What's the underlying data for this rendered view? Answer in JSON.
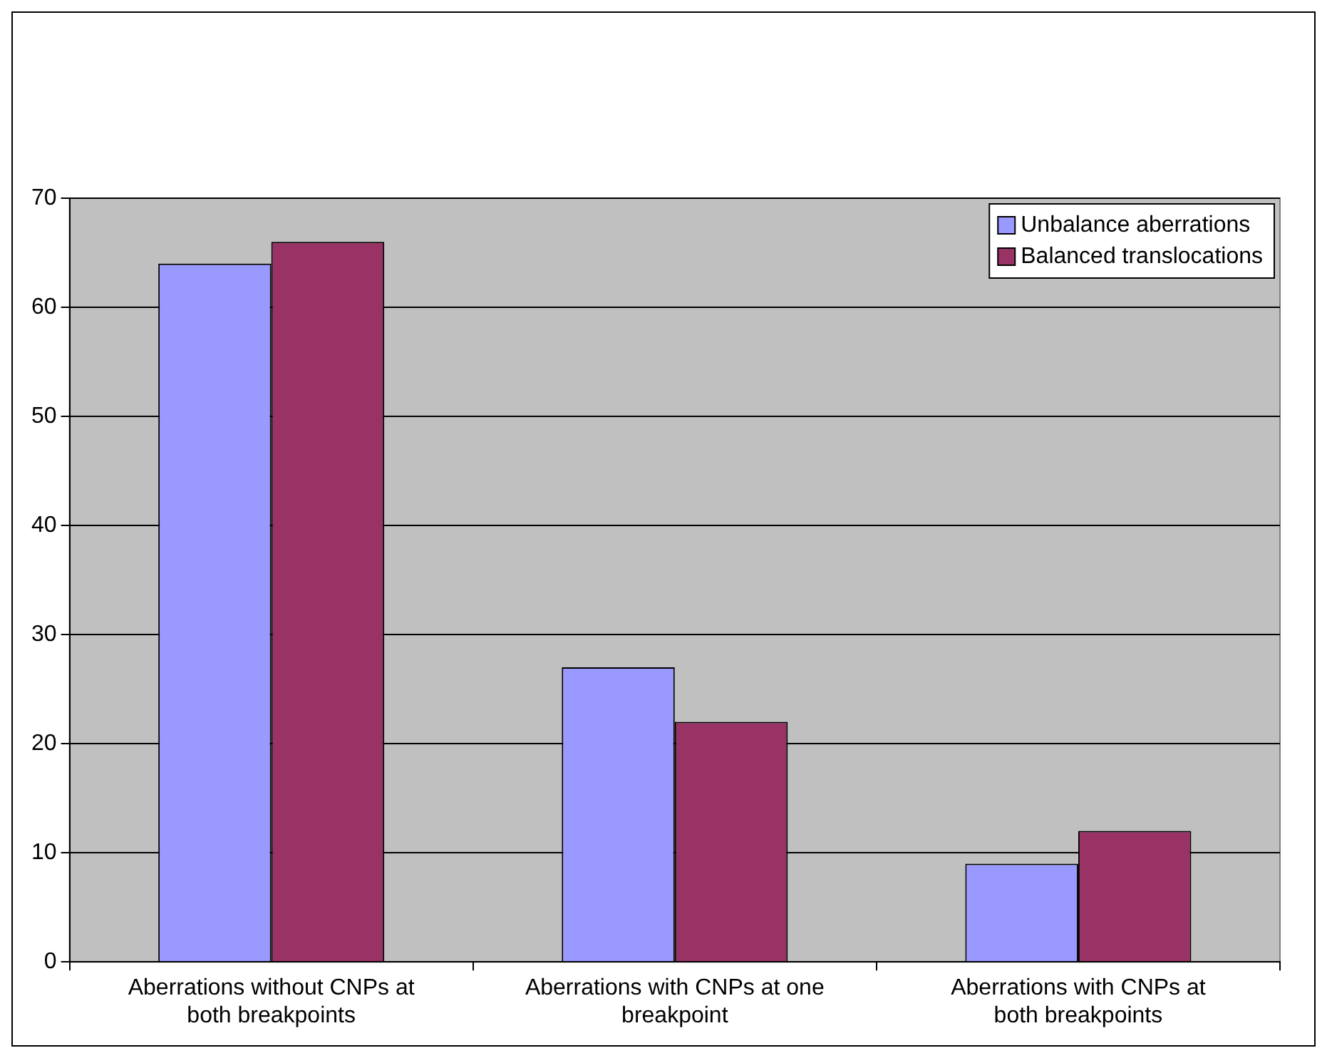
{
  "chart_data": {
    "type": "bar",
    "categories": [
      "Aberrations without CNPs at both breakpoints",
      "Aberrations with CNPs at one breakpoint",
      "Aberrations with CNPs at both breakpoints"
    ],
    "series": [
      {
        "name": "Unbalance aberrations",
        "color": "#9999ff",
        "values": [
          64,
          27,
          9
        ]
      },
      {
        "name": "Balanced translocations",
        "color": "#993366",
        "values": [
          66,
          22,
          12
        ]
      }
    ],
    "ylim": [
      0,
      70
    ],
    "yticks": [
      0,
      10,
      20,
      30,
      40,
      50,
      60,
      70
    ],
    "grid": "y",
    "legend": "top right"
  }
}
